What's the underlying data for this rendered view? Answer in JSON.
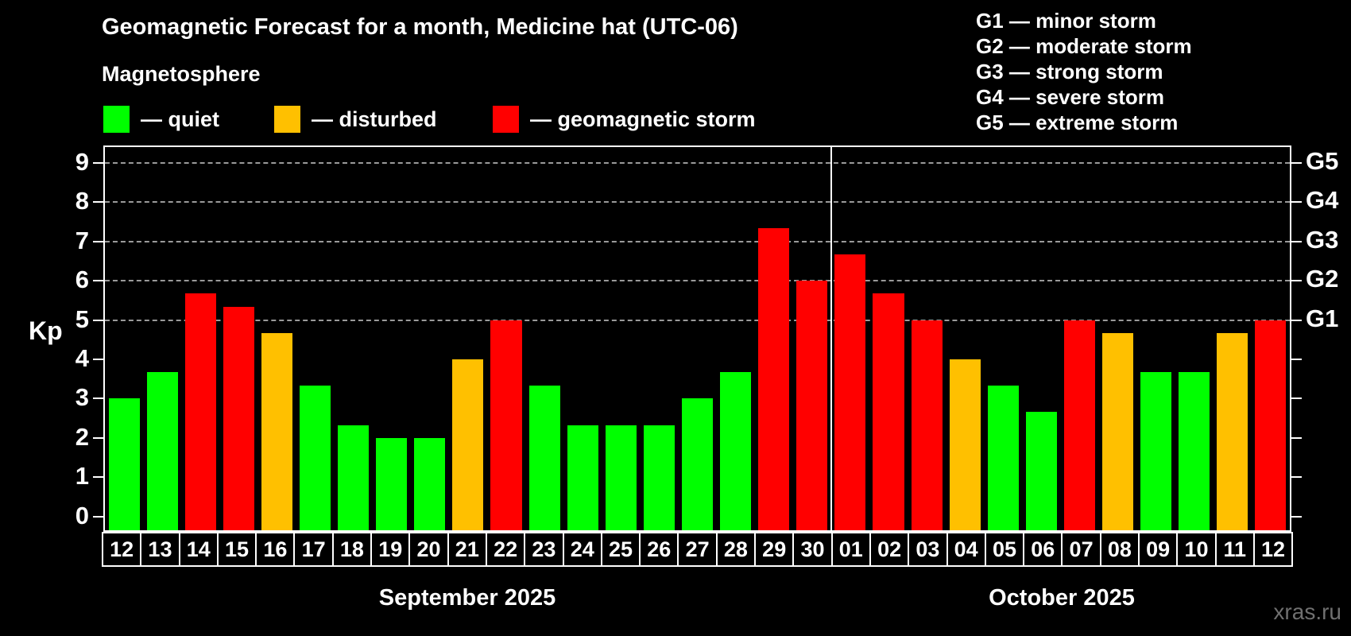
{
  "title": "Geomagnetic Forecast for a month, Medicine hat (UTC-06)",
  "subtitle": "Magnetosphere",
  "legend": [
    {
      "key": "quiet",
      "label": "— quiet"
    },
    {
      "key": "disturbed",
      "label": "— disturbed"
    },
    {
      "key": "storm",
      "label": "— geomagnetic storm"
    }
  ],
  "g_scale_legend": [
    "G1 — minor storm",
    "G2 — moderate storm",
    "G3 — strong storm",
    "G4 — severe storm",
    "G5 — extreme storm"
  ],
  "watermark": "xras.ru",
  "colors": {
    "quiet": "#00ff00",
    "disturbed": "#ffc000",
    "storm": "#ff0000",
    "grid": "#9a9a9a",
    "axis": "#ffffff",
    "watermark": "#707070"
  },
  "chart_data": {
    "type": "bar",
    "ylabel": "Kp",
    "ylim": [
      -0.35,
      9.4
    ],
    "yticks": [
      0,
      1,
      2,
      3,
      4,
      5,
      6,
      7,
      8,
      9
    ],
    "gridlines_at": [
      5,
      6,
      7,
      8,
      9
    ],
    "right_axis_labels": [
      {
        "kp": 5,
        "label": "G1"
      },
      {
        "kp": 6,
        "label": "G2"
      },
      {
        "kp": 7,
        "label": "G3"
      },
      {
        "kp": 8,
        "label": "G4"
      },
      {
        "kp": 9,
        "label": "G5"
      }
    ],
    "months": [
      {
        "label": "September 2025",
        "days": 19
      },
      {
        "label": "October 2025",
        "days": 12
      }
    ],
    "bars": [
      {
        "day": "12",
        "kp": 3.0,
        "status": "quiet"
      },
      {
        "day": "13",
        "kp": 3.67,
        "status": "quiet"
      },
      {
        "day": "14",
        "kp": 5.67,
        "status": "storm"
      },
      {
        "day": "15",
        "kp": 5.33,
        "status": "storm"
      },
      {
        "day": "16",
        "kp": 4.67,
        "status": "disturbed"
      },
      {
        "day": "17",
        "kp": 3.33,
        "status": "quiet"
      },
      {
        "day": "18",
        "kp": 2.33,
        "status": "quiet"
      },
      {
        "day": "19",
        "kp": 2.0,
        "status": "quiet"
      },
      {
        "day": "20",
        "kp": 2.0,
        "status": "quiet"
      },
      {
        "day": "21",
        "kp": 4.0,
        "status": "disturbed"
      },
      {
        "day": "22",
        "kp": 5.0,
        "status": "storm"
      },
      {
        "day": "23",
        "kp": 3.33,
        "status": "quiet"
      },
      {
        "day": "24",
        "kp": 2.33,
        "status": "quiet"
      },
      {
        "day": "25",
        "kp": 2.33,
        "status": "quiet"
      },
      {
        "day": "26",
        "kp": 2.33,
        "status": "quiet"
      },
      {
        "day": "27",
        "kp": 3.0,
        "status": "quiet"
      },
      {
        "day": "28",
        "kp": 3.67,
        "status": "quiet"
      },
      {
        "day": "29",
        "kp": 7.33,
        "status": "storm"
      },
      {
        "day": "30",
        "kp": 6.0,
        "status": "storm"
      },
      {
        "day": "01",
        "kp": 6.67,
        "status": "storm"
      },
      {
        "day": "02",
        "kp": 5.67,
        "status": "storm"
      },
      {
        "day": "03",
        "kp": 5.0,
        "status": "storm"
      },
      {
        "day": "04",
        "kp": 4.0,
        "status": "disturbed"
      },
      {
        "day": "05",
        "kp": 3.33,
        "status": "quiet"
      },
      {
        "day": "06",
        "kp": 2.67,
        "status": "quiet"
      },
      {
        "day": "07",
        "kp": 5.0,
        "status": "storm"
      },
      {
        "day": "08",
        "kp": 4.67,
        "status": "disturbed"
      },
      {
        "day": "09",
        "kp": 3.67,
        "status": "quiet"
      },
      {
        "day": "10",
        "kp": 3.67,
        "status": "quiet"
      },
      {
        "day": "11",
        "kp": 4.67,
        "status": "disturbed"
      },
      {
        "day": "12",
        "kp": 5.0,
        "status": "storm"
      }
    ]
  }
}
